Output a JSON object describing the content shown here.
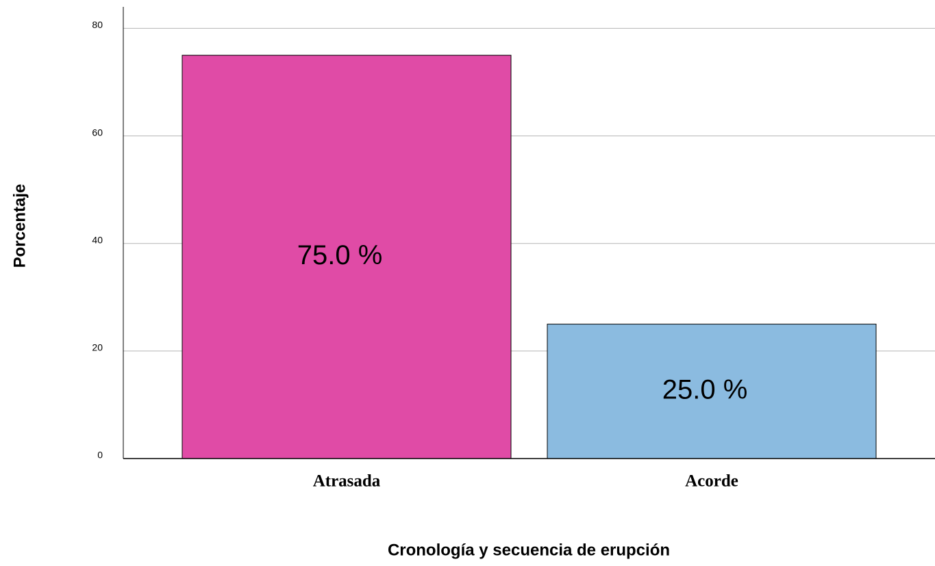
{
  "chart_data": {
    "type": "bar",
    "categories": [
      "Atrasada",
      "Acorde"
    ],
    "values": [
      75,
      25
    ],
    "value_labels": [
      "75.0 %",
      "25.0 %"
    ],
    "colors": [
      "#e04ba6",
      "#8bbbe0"
    ],
    "xlabel": "Cronología y secuencia de erupción",
    "ylabel": "Porcentaje",
    "ylim": [
      0,
      84
    ],
    "yticks": [
      0,
      20,
      40,
      60,
      80
    ],
    "grid": true
  }
}
